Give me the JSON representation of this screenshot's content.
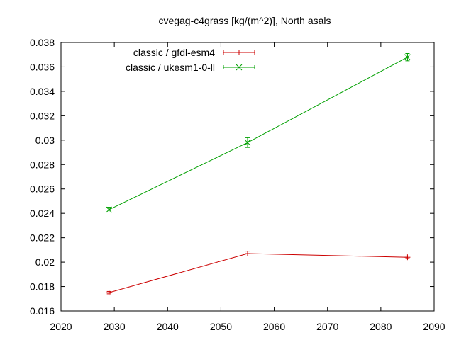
{
  "chart_data": {
    "type": "line",
    "title": "cvegag-c4grass [kg/(m^2)], North asals",
    "xlabel": "",
    "ylabel": "",
    "xlim": [
      2020,
      2090
    ],
    "ylim": [
      0.016,
      0.038
    ],
    "xticks": [
      2020,
      2030,
      2040,
      2050,
      2060,
      2070,
      2080,
      2090
    ],
    "yticks": [
      0.016,
      0.018,
      0.02,
      0.022,
      0.024,
      0.026,
      0.028,
      0.03,
      0.032,
      0.034,
      0.036,
      0.038
    ],
    "xtick_labels": [
      "2020",
      "2030",
      "2040",
      "2050",
      "2060",
      "2070",
      "2080",
      "2090"
    ],
    "ytick_labels": [
      "0.016",
      "0.018",
      "0.02",
      "0.022",
      "0.024",
      "0.026",
      "0.028",
      "0.03",
      "0.032",
      "0.034",
      "0.036",
      "0.038"
    ],
    "grid": false,
    "legend_position": "top-left",
    "series": [
      {
        "name": "classic / gfdl-esm4",
        "color": "#cc0000",
        "marker": "plus",
        "x": [
          2029,
          2055,
          2085
        ],
        "y": [
          0.0175,
          0.0207,
          0.0204
        ],
        "err": [
          0.0001,
          0.0002,
          0.0001
        ]
      },
      {
        "name": "classic / ukesm1-0-ll",
        "color": "#00a000",
        "marker": "cross",
        "x": [
          2029,
          2055,
          2085
        ],
        "y": [
          0.0243,
          0.0298,
          0.0368
        ],
        "err": [
          0.0002,
          0.0004,
          0.0003
        ]
      }
    ]
  }
}
